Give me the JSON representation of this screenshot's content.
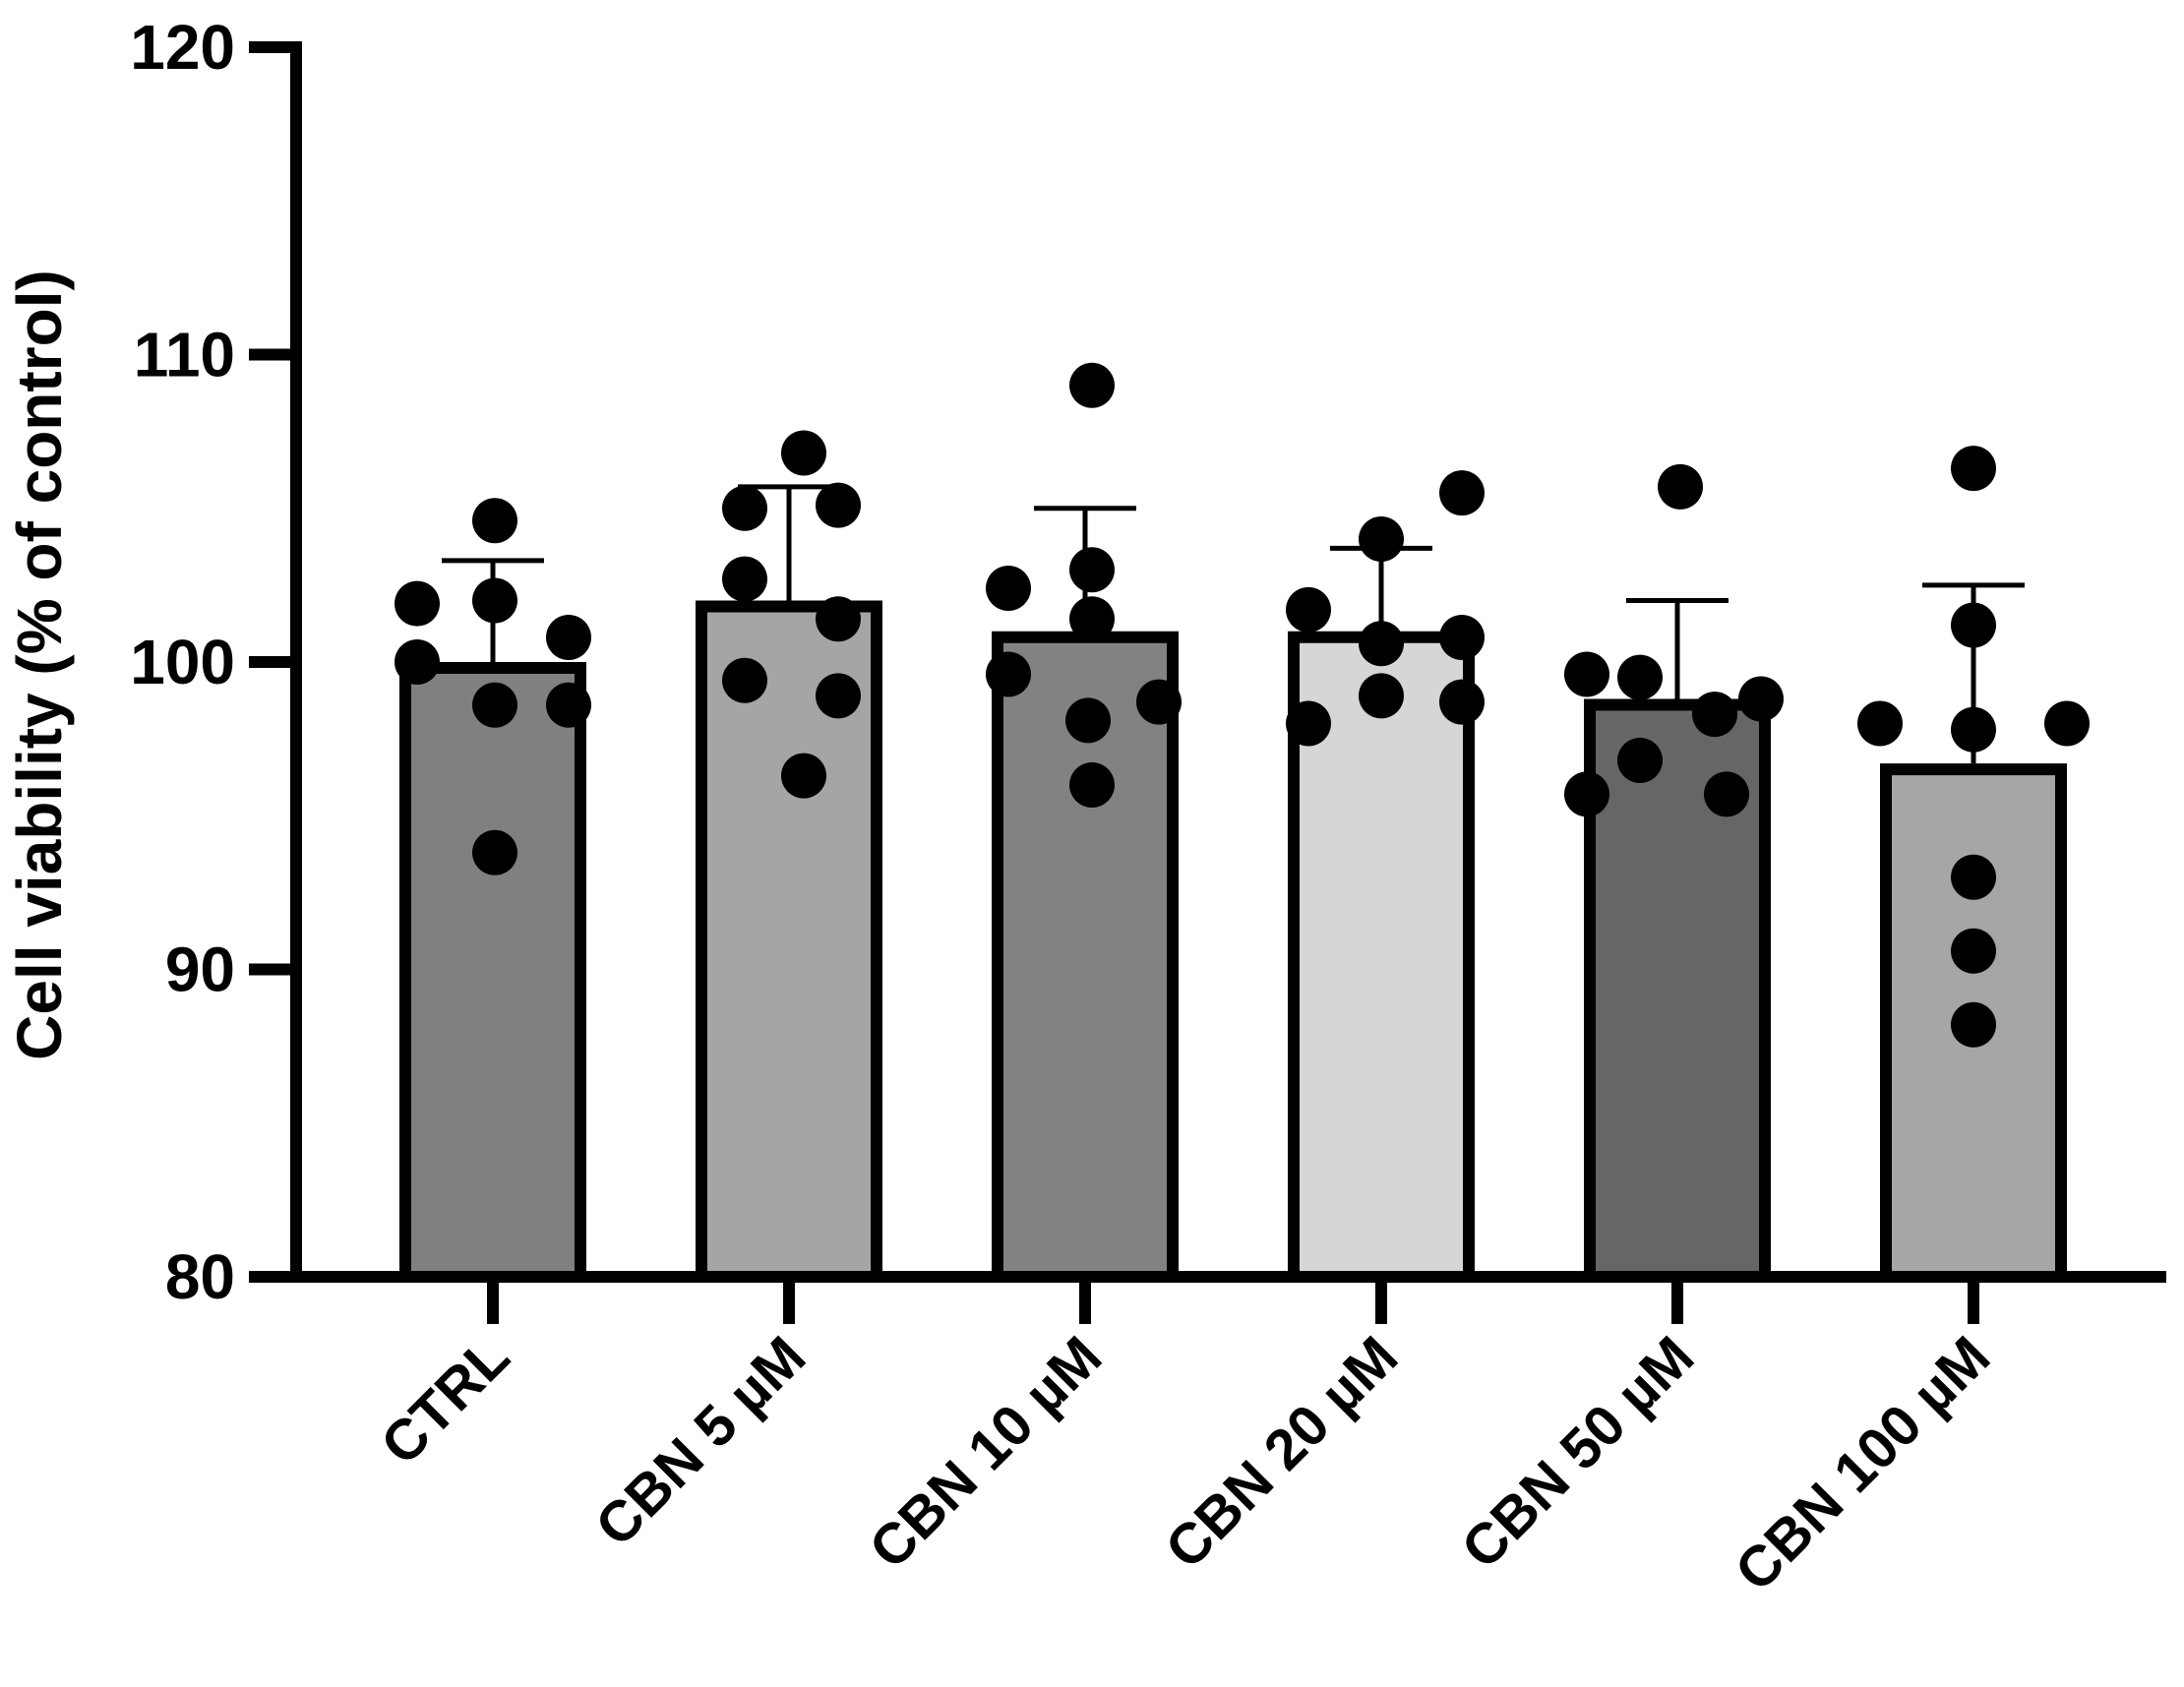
{
  "chart_data": {
    "type": "bar",
    "title": "",
    "xlabel": "",
    "ylabel": "Cell viability (% of control)",
    "ylim": [
      80,
      120
    ],
    "yticks": [
      80,
      90,
      100,
      110,
      120
    ],
    "grid": false,
    "categories": [
      "CTRL",
      "CBN 5 µM",
      "CBN 10 µM",
      "CBN 20 µM",
      "CBN 50 µM",
      "CBN 100 µM"
    ],
    "values": [
      100.0,
      102.0,
      101.0,
      101.0,
      98.8,
      96.7
    ],
    "errors": [
      3.3,
      3.7,
      4.0,
      2.7,
      3.2,
      5.8
    ],
    "colors": [
      "#808080",
      "#a5a5a7",
      "#828282",
      "#d6d6d6",
      "#666666",
      "#a6a6a6"
    ],
    "points": [
      [
        100.0,
        102.0,
        104.6,
        101.9,
        98.6,
        100.8,
        98.6,
        93.8
      ],
      [
        99.4,
        102.7,
        105.0,
        96.3,
        106.8,
        101.4,
        105.1,
        98.9
      ],
      [
        99.6,
        102.4,
        109.0,
        96.0,
        103.0,
        101.4,
        98.1,
        98.7
      ],
      [
        98.0,
        101.7,
        100.6,
        98.9,
        104.0,
        100.8,
        105.5,
        98.7
      ],
      [
        95.7,
        99.6,
        96.8,
        99.5,
        105.7,
        98.3,
        95.7,
        98.8
      ],
      [
        98.0,
        97.8,
        106.3,
        101.2,
        93.0,
        90.6,
        88.2,
        98.0
      ]
    ]
  }
}
